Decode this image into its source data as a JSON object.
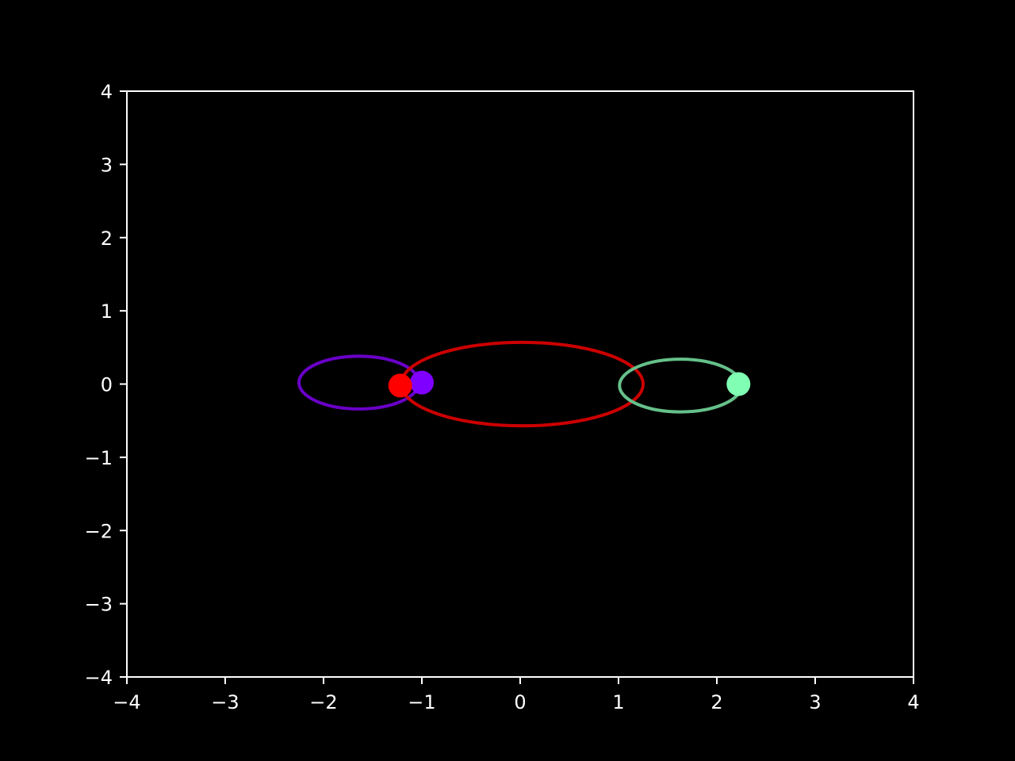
{
  "chart_data": {
    "type": "line",
    "title": "",
    "xlabel": "",
    "ylabel": "",
    "xlim": [
      -4,
      4
    ],
    "ylim": [
      -4,
      4
    ],
    "grid": false,
    "x_ticks": [
      -4,
      -3,
      -2,
      -1,
      0,
      1,
      2,
      3,
      4
    ],
    "y_ticks": [
      -4,
      -3,
      -2,
      -1,
      0,
      1,
      2,
      3,
      4
    ],
    "x_tick_labels": [
      "−4",
      "−3",
      "−2",
      "−1",
      "0",
      "1",
      "2",
      "3",
      "4"
    ],
    "y_tick_labels": [
      "−4",
      "−3",
      "−2",
      "−1",
      "0",
      "1",
      "2",
      "3",
      "4"
    ],
    "colors": {
      "background": "#000000",
      "axes": "#ffffff"
    },
    "series": [
      {
        "color": "#6a00c8",
        "marker_color": "#8000ff",
        "orbit": {
          "center": [
            -1.64,
            0.02
          ],
          "rx": 0.61,
          "ry": 0.36
        },
        "marker": [
          -1.0,
          0.02
        ]
      },
      {
        "color": "#cc0000",
        "marker_color": "#ff0000",
        "orbit": {
          "center": [
            0.02,
            0.0
          ],
          "rx": 1.23,
          "ry": 0.57
        },
        "marker": [
          -1.22,
          -0.02
        ]
      },
      {
        "color": "#66c08a",
        "marker_color": "#80ffb4",
        "orbit": {
          "center": [
            1.63,
            -0.02
          ],
          "rx": 0.62,
          "ry": 0.36
        },
        "marker": [
          2.22,
          0.0
        ]
      }
    ]
  }
}
